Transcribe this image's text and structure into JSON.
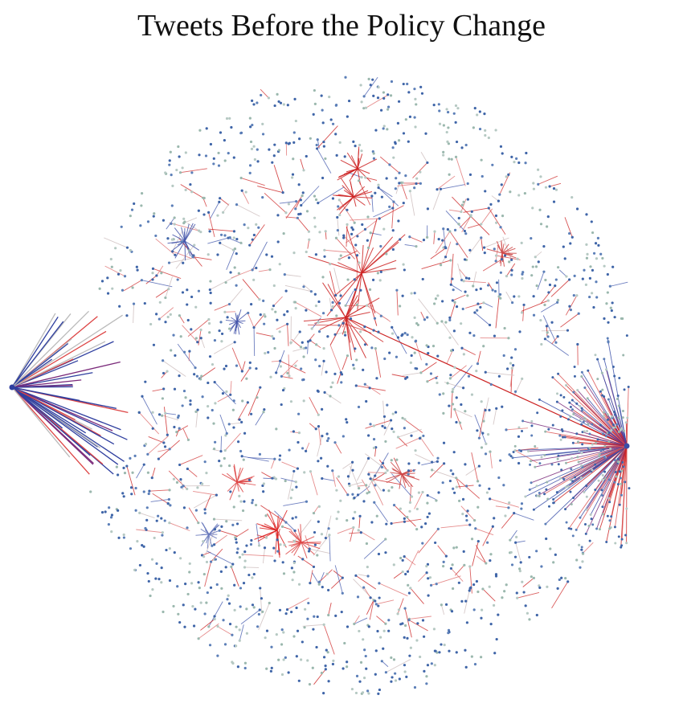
{
  "title": "Tweets Before the Policy Change"
}
